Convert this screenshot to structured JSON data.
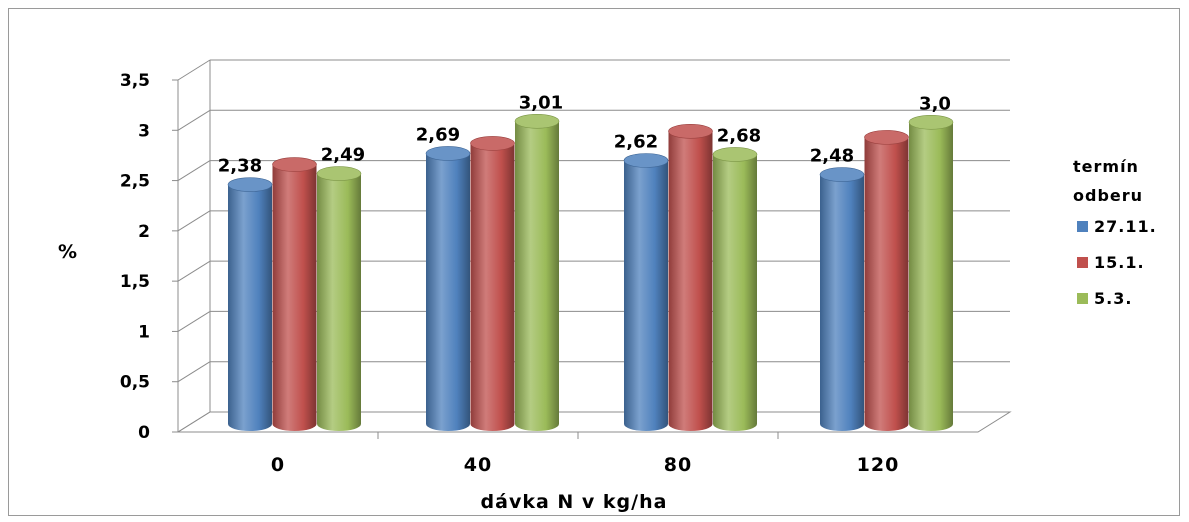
{
  "chart_data": {
    "type": "bar",
    "categories": [
      "0",
      "40",
      "80",
      "120"
    ],
    "series": [
      {
        "name": "27.11.",
        "values": [
          2.38,
          2.69,
          2.62,
          2.48
        ],
        "labels": [
          "2,38",
          "2,69",
          "2,62",
          "2,48"
        ],
        "color": "#4f81bd"
      },
      {
        "name": "15.1.",
        "values": [
          2.58,
          2.79,
          2.91,
          2.85
        ],
        "labels": [
          "",
          "",
          "",
          ""
        ],
        "color": "#c0504d"
      },
      {
        "name": "5.3.",
        "values": [
          2.49,
          3.01,
          2.68,
          3.0
        ],
        "labels": [
          "2,49",
          "3,01",
          "2,68",
          "3,0"
        ],
        "color": "#9bbb59"
      }
    ],
    "yticks": [
      "0",
      "0,5",
      "1",
      "1,5",
      "2",
      "2,5",
      "3",
      "3,5"
    ],
    "ylim": [
      0,
      3.5
    ],
    "xlabel": "dávka N v kg/ha",
    "ylabel": "%",
    "legend_title_line1": "termín",
    "legend_title_line2": "odberu",
    "legend_position": "right",
    "grid": true
  }
}
